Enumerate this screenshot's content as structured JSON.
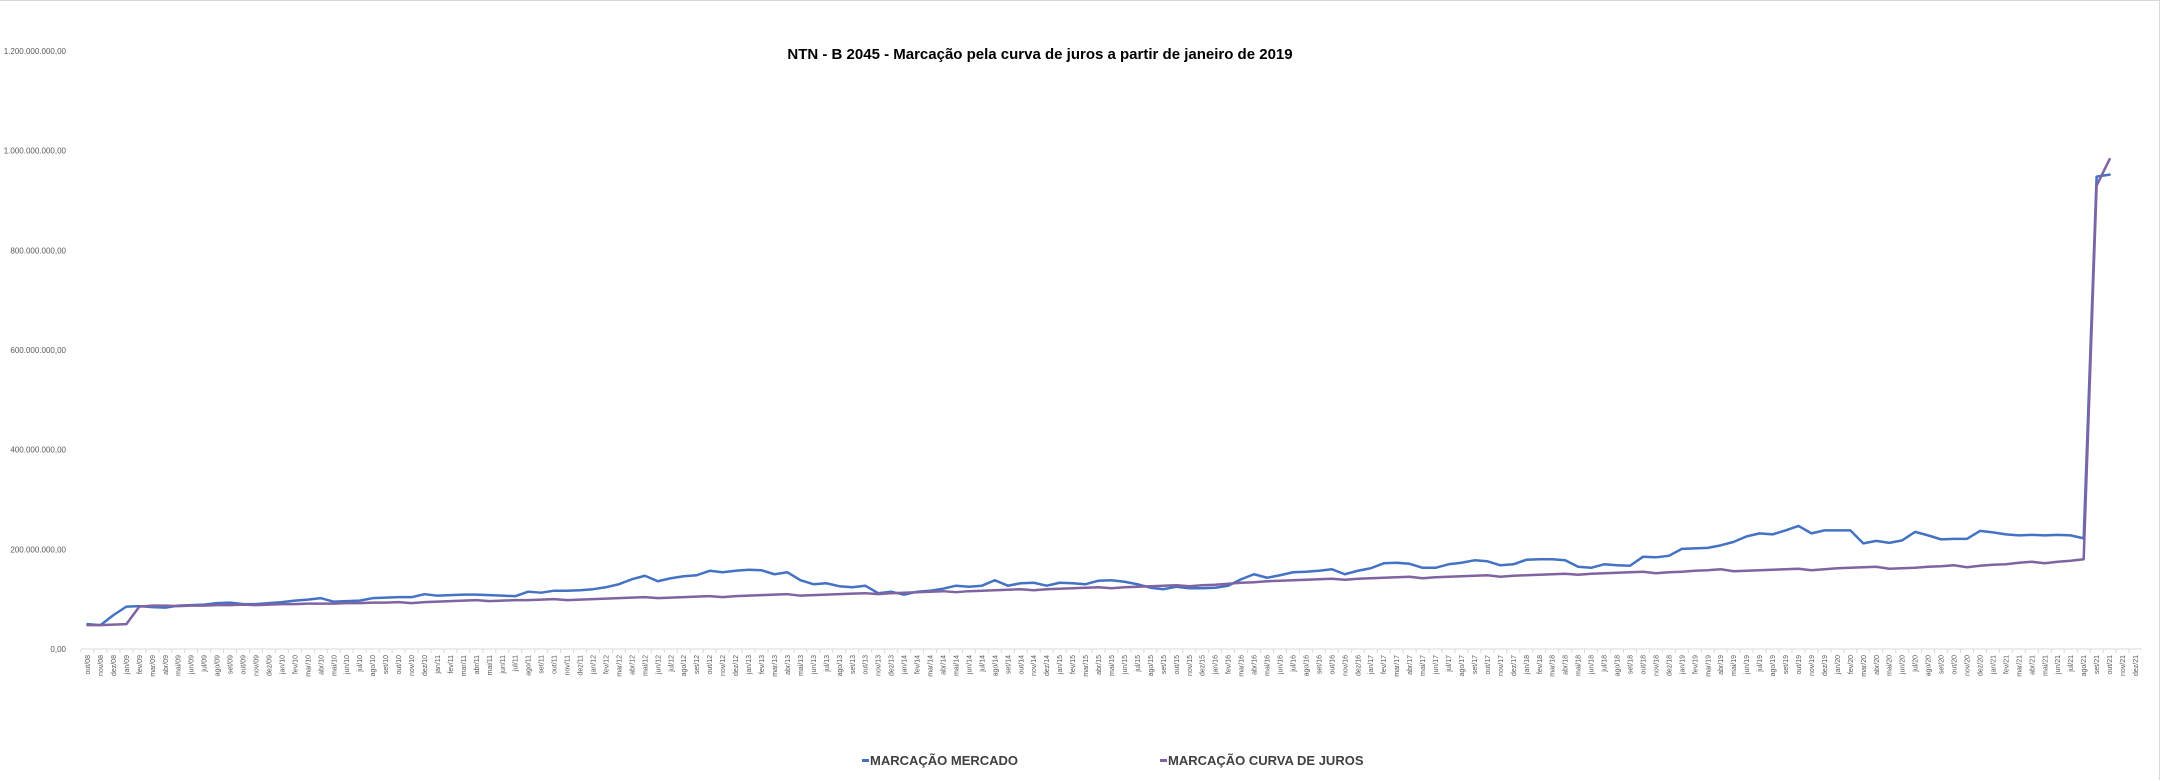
{
  "chart_data": {
    "type": "line",
    "title": "NTN - B 2045 - Marcação pela curva de juros a partir de janeiro de 2019",
    "xlabel": "",
    "ylabel": "",
    "ylim": [
      0,
      1200000000
    ],
    "yticks": [
      "0,00",
      "200.000.000,00",
      "400.000.000,00",
      "600.000.000,00",
      "800.000.000,00",
      "1.000.000.000,00",
      "1.200.000.000,00"
    ],
    "grid": false,
    "legend_position": "bottom",
    "categories": [
      "out/08",
      "nov/08",
      "dez/08",
      "jan/09",
      "fev/09",
      "mar/09",
      "abr/09",
      "mai/09",
      "jun/09",
      "jul/09",
      "ago/09",
      "set/09",
      "out/09",
      "nov/09",
      "dez/09",
      "jan/10",
      "fev/10",
      "mar/10",
      "abr/10",
      "mai/10",
      "jun/10",
      "jul/10",
      "ago/10",
      "set/10",
      "out/10",
      "nov/10",
      "dez/10",
      "jan/11",
      "fev/11",
      "mar/11",
      "abr/11",
      "mai/11",
      "jun/11",
      "jul/11",
      "ago/11",
      "set/11",
      "out/11",
      "nov/11",
      "dez/11",
      "jan/12",
      "fev/12",
      "mar/12",
      "abr/12",
      "mai/12",
      "jun/12",
      "jul/12",
      "ago/12",
      "set/12",
      "out/12",
      "nov/12",
      "dez/12",
      "jan/13",
      "fev/13",
      "mar/13",
      "abr/13",
      "mai/13",
      "jun/13",
      "jul/13",
      "ago/13",
      "set/13",
      "out/13",
      "nov/13",
      "dez/13",
      "jan/14",
      "fev/14",
      "mar/14",
      "abr/14",
      "mai/14",
      "jun/14",
      "jul/14",
      "ago/14",
      "set/14",
      "out/14",
      "nov/14",
      "dez/14",
      "jan/15",
      "fev/15",
      "mar/15",
      "abr/15",
      "mai/15",
      "jun/15",
      "jul/15",
      "ago/15",
      "set/15",
      "out/15",
      "nov/15",
      "dez/15",
      "jan/16",
      "fev/16",
      "mar/16",
      "abr/16",
      "mai/16",
      "jun/16",
      "jul/16",
      "ago/16",
      "set/16",
      "out/16",
      "nov/16",
      "dez/16",
      "jan/17",
      "fev/17",
      "mar/17",
      "abr/17",
      "mai/17",
      "jun/17",
      "jul/17",
      "ago/17",
      "set/17",
      "out/17",
      "nov/17",
      "dez/17",
      "jan/18",
      "fev/18",
      "mar/18",
      "abr/18",
      "mai/18",
      "jun/18",
      "jul/18",
      "ago/18",
      "set/18",
      "out/18",
      "nov/18",
      "dez/18",
      "jan/19",
      "fev/19",
      "mar/19",
      "abr/19",
      "mai/19",
      "jun/19",
      "jul/19",
      "ago/19",
      "set/19",
      "out/19",
      "nov/19",
      "dez/19",
      "jan/20",
      "fev/20",
      "mar/20",
      "abr/20",
      "mai/20",
      "jun/20",
      "jul/20",
      "ago/20",
      "set/20",
      "out/20",
      "nov/20",
      "dez/20",
      "jan/21",
      "fev/21",
      "mar/21",
      "abr/21",
      "mai/21",
      "jun/21",
      "jul/21",
      "ago/21",
      "set/21",
      "out/21",
      "nov/21",
      "dez/21"
    ],
    "series": [
      {
        "name": "MARCAÇÃO MERCADO",
        "color": "#4472c4",
        "values": [
          50000000,
          48000000,
          68000000,
          85000000,
          86000000,
          84000000,
          83000000,
          87000000,
          88000000,
          89000000,
          92000000,
          93000000,
          90000000,
          90000000,
          92000000,
          94000000,
          97000000,
          99000000,
          102000000,
          95000000,
          96000000,
          97000000,
          102000000,
          103000000,
          104000000,
          104000000,
          110000000,
          107000000,
          108000000,
          109000000,
          109000000,
          108000000,
          107000000,
          106000000,
          115000000,
          113000000,
          117000000,
          117000000,
          118000000,
          120000000,
          124000000,
          130000000,
          140000000,
          147000000,
          136000000,
          142000000,
          146000000,
          148000000,
          157000000,
          154000000,
          157000000,
          159000000,
          158000000,
          150000000,
          154000000,
          138000000,
          130000000,
          132000000,
          126000000,
          124000000,
          127000000,
          112000000,
          115000000,
          109000000,
          115000000,
          117000000,
          121000000,
          127000000,
          125000000,
          127000000,
          138000000,
          127000000,
          132000000,
          133000000,
          127000000,
          133000000,
          132000000,
          130000000,
          137000000,
          138000000,
          135000000,
          130000000,
          123000000,
          120000000,
          125000000,
          122000000,
          122000000,
          123000000,
          127000000,
          140000000,
          150000000,
          143000000,
          148000000,
          154000000,
          155000000,
          157000000,
          160000000,
          150000000,
          157000000,
          162000000,
          172000000,
          173000000,
          171000000,
          163000000,
          163000000,
          170000000,
          173000000,
          178000000,
          176000000,
          168000000,
          170000000,
          179000000,
          180000000,
          180000000,
          178000000,
          165000000,
          163000000,
          170000000,
          168000000,
          167000000,
          185000000,
          184000000,
          187000000,
          201000000,
          202000000,
          203000000,
          208000000,
          215000000,
          226000000,
          232000000,
          230000000,
          238000000,
          247000000,
          232000000,
          238000000,
          238000000,
          238000000,
          212000000,
          217000000,
          213000000,
          218000000,
          235000000,
          228000000,
          220000000,
          221000000,
          221000000,
          237000000,
          234000000,
          230000000,
          228000000,
          229000000,
          228000000,
          229000000,
          228000000,
          222000000,
          948000000,
          952000000,
          null,
          null
        ]
      },
      {
        "name": "MARCAÇÃO CURVA DE JUROS",
        "color": "#8064a2",
        "values": [
          48000000,
          48000000,
          49000000,
          50000000,
          85000000,
          87000000,
          87000000,
          86000000,
          87000000,
          87000000,
          88000000,
          88000000,
          89000000,
          88000000,
          89000000,
          90000000,
          90000000,
          91000000,
          91000000,
          91000000,
          92000000,
          92000000,
          93000000,
          93000000,
          94000000,
          92000000,
          94000000,
          95000000,
          96000000,
          97000000,
          98000000,
          96000000,
          97000000,
          98000000,
          98000000,
          99000000,
          100000000,
          98000000,
          99000000,
          100000000,
          101000000,
          102000000,
          103000000,
          104000000,
          102000000,
          103000000,
          104000000,
          105000000,
          106000000,
          104000000,
          106000000,
          107000000,
          108000000,
          109000000,
          110000000,
          107000000,
          108000000,
          109000000,
          110000000,
          111000000,
          112000000,
          110000000,
          112000000,
          113000000,
          114000000,
          115000000,
          116000000,
          114000000,
          116000000,
          117000000,
          118000000,
          119000000,
          120000000,
          118000000,
          120000000,
          121000000,
          122000000,
          123000000,
          124000000,
          122000000,
          124000000,
          125000000,
          126000000,
          127000000,
          128000000,
          126000000,
          128000000,
          129000000,
          131000000,
          133000000,
          134000000,
          136000000,
          137000000,
          138000000,
          139000000,
          140000000,
          141000000,
          139000000,
          141000000,
          142000000,
          143000000,
          144000000,
          145000000,
          142000000,
          144000000,
          145000000,
          146000000,
          147000000,
          148000000,
          145000000,
          147000000,
          148000000,
          149000000,
          150000000,
          151000000,
          149000000,
          151000000,
          152000000,
          153000000,
          154000000,
          155000000,
          152000000,
          154000000,
          155000000,
          157000000,
          158000000,
          160000000,
          156000000,
          157000000,
          158000000,
          159000000,
          160000000,
          161000000,
          158000000,
          160000000,
          162000000,
          163000000,
          164000000,
          165000000,
          161000000,
          162000000,
          163000000,
          165000000,
          166000000,
          168000000,
          164000000,
          167000000,
          169000000,
          170000000,
          173000000,
          175000000,
          172000000,
          175000000,
          177000000,
          180000000,
          930000000,
          983000000,
          null,
          null
        ]
      }
    ]
  }
}
